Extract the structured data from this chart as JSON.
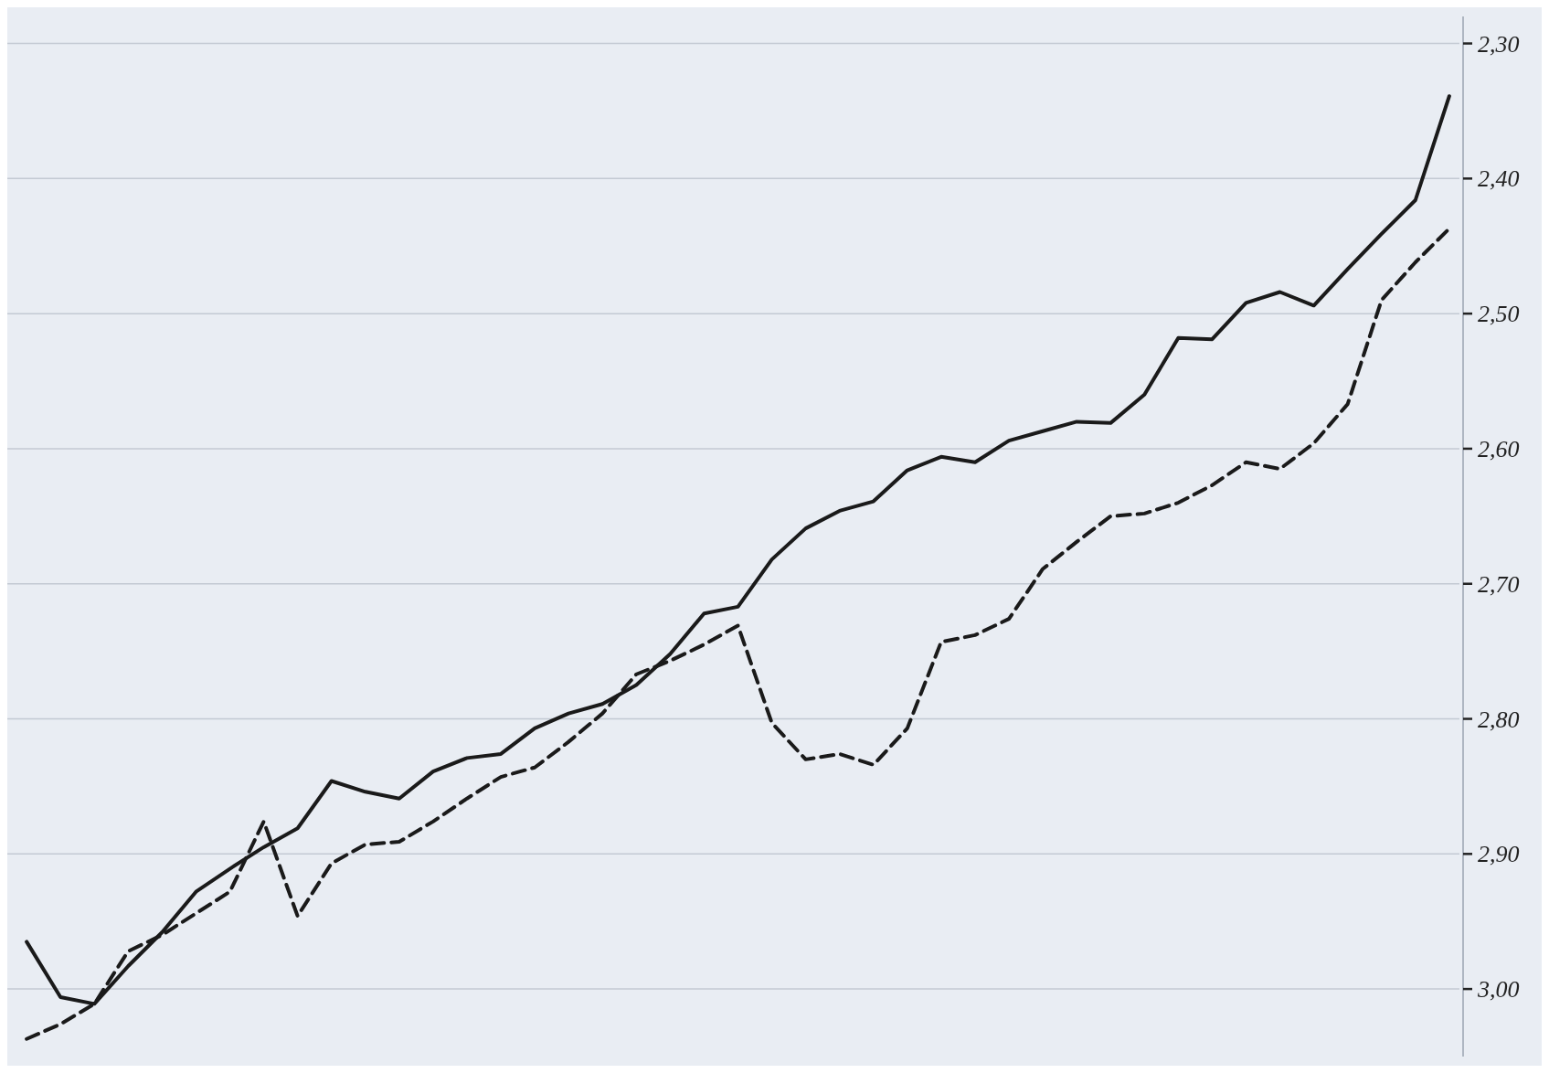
{
  "chart_data": {
    "type": "line",
    "categories": [
      null,
      null,
      null,
      null,
      null,
      null,
      null,
      null,
      null,
      null,
      null,
      null,
      null,
      null,
      null,
      null,
      null,
      null,
      null,
      null,
      null,
      null,
      null,
      null,
      null,
      null,
      null,
      null,
      null,
      null,
      null,
      null,
      null,
      null,
      null,
      null,
      null,
      null,
      null,
      null,
      null,
      null,
      null
    ],
    "series": [
      {
        "color": "#1a1a1a",
        "line_style": "solid",
        "values": [
          2.965,
          3.006,
          3.011,
          2.983,
          2.958,
          2.928,
          2.911,
          2.895,
          2.881,
          2.846,
          2.854,
          2.859,
          2.839,
          2.829,
          2.826,
          2.807,
          2.796,
          2.789,
          2.775,
          2.752,
          2.722,
          2.717,
          2.682,
          2.659,
          2.646,
          2.639,
          2.616,
          2.606,
          2.61,
          2.594,
          2.587,
          2.58,
          2.581,
          2.56,
          2.518,
          2.519,
          2.492,
          2.484,
          2.494,
          2.467,
          2.441,
          2.416,
          2.339
        ]
      },
      {
        "color": "#1a1a1a",
        "line_style": "dashed",
        "values": [
          3.037,
          3.026,
          3.011,
          2.972,
          2.96,
          2.944,
          2.928,
          2.876,
          2.946,
          2.907,
          2.893,
          2.891,
          2.876,
          2.859,
          2.843,
          2.836,
          2.817,
          2.796,
          2.767,
          2.757,
          2.745,
          2.731,
          2.803,
          2.83,
          2.826,
          2.834,
          2.807,
          2.743,
          2.738,
          2.726,
          2.689,
          2.669,
          2.65,
          2.648,
          2.64,
          2.627,
          2.61,
          2.615,
          2.596,
          2.567,
          2.49,
          2.462,
          2.437
        ]
      }
    ],
    "ylim": [
      3.05,
      2.28
    ],
    "yticks": [
      {
        "value": 3.0,
        "label": "3,00"
      },
      {
        "value": 2.9,
        "label": "2,90"
      },
      {
        "value": 2.8,
        "label": "2,80"
      },
      {
        "value": 2.7,
        "label": "2,70"
      },
      {
        "value": 2.6,
        "label": "2,60"
      },
      {
        "value": 2.5,
        "label": "2,50"
      },
      {
        "value": 2.4,
        "label": "2,40"
      },
      {
        "value": 2.3,
        "label": "2,30"
      }
    ],
    "grid": "y",
    "marker": "none",
    "tick_labels": "y"
  }
}
